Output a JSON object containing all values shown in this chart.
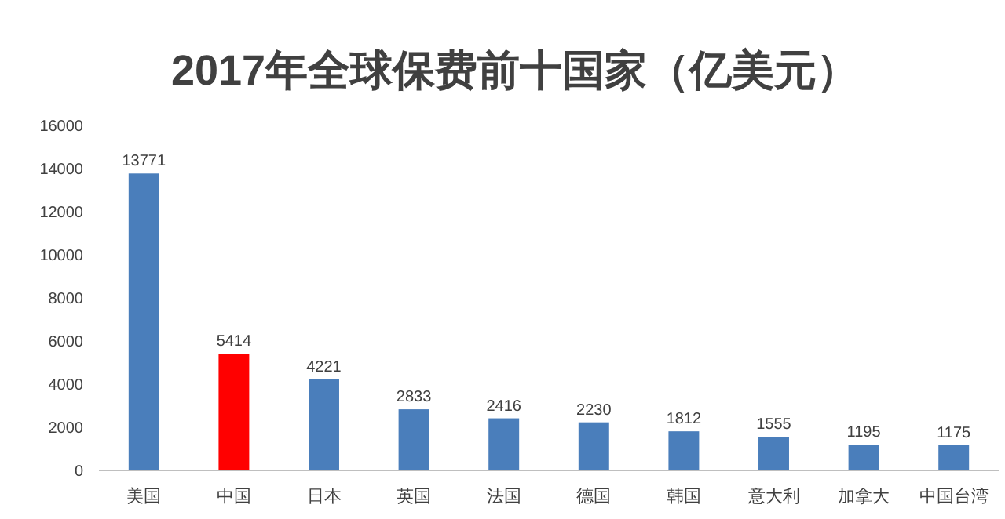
{
  "chart_data": {
    "type": "bar",
    "title": "2017年全球保费前十国家（亿美元）",
    "categories": [
      "美国",
      "中国",
      "日本",
      "英国",
      "法国",
      "德国",
      "韩国",
      "意大利",
      "加拿大",
      "中国台湾"
    ],
    "values": [
      13771,
      5414,
      4221,
      2833,
      2416,
      2230,
      1812,
      1555,
      1195,
      1175
    ],
    "colors": [
      "#4a7ebb",
      "#ff0000",
      "#4a7ebb",
      "#4a7ebb",
      "#4a7ebb",
      "#4a7ebb",
      "#4a7ebb",
      "#4a7ebb",
      "#4a7ebb",
      "#4a7ebb"
    ],
    "ylim": [
      0,
      16000
    ],
    "yticks": [
      0,
      2000,
      4000,
      6000,
      8000,
      10000,
      12000,
      14000,
      16000
    ],
    "data_labels": true,
    "grid": false
  }
}
